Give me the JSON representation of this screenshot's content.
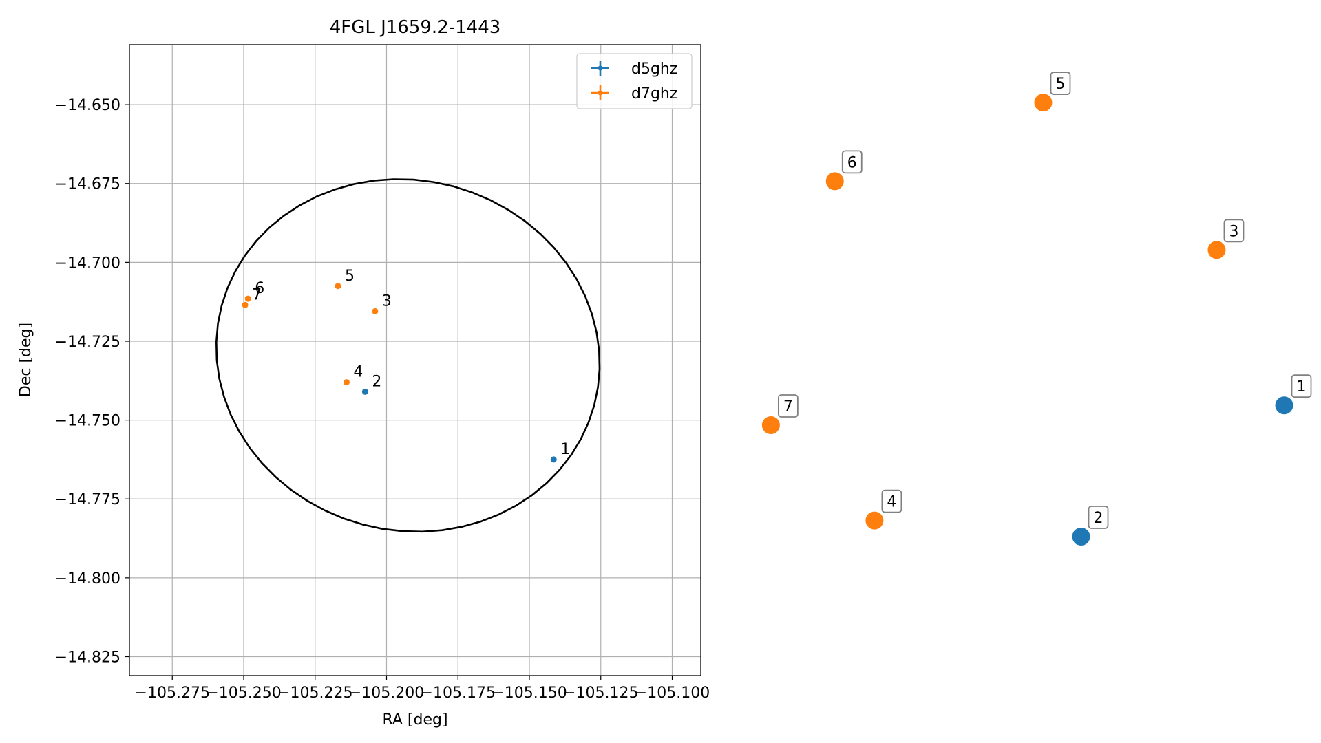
{
  "chart_data": [
    {
      "type": "scatter",
      "title": "4FGL J1659.2-1443",
      "xlabel": "RA [deg]",
      "ylabel": "Dec [deg]",
      "xlim": [
        -105.29,
        -105.09
      ],
      "ylim": [
        -14.831,
        -14.631
      ],
      "xticks": [
        -105.275,
        -105.25,
        -105.225,
        -105.2,
        -105.175,
        -105.15,
        -105.125,
        -105.1
      ],
      "xtick_labels": [
        "−105.275",
        "−105.250",
        "−105.225",
        "−105.200",
        "−105.175",
        "−105.150",
        "−105.125",
        "−105.100"
      ],
      "yticks": [
        -14.65,
        -14.675,
        -14.7,
        -14.725,
        -14.75,
        -14.775,
        -14.8,
        -14.825
      ],
      "ytick_labels": [
        "−14.650",
        "−14.675",
        "−14.700",
        "−14.725",
        "−14.750",
        "−14.775",
        "−14.800",
        "−14.825"
      ],
      "grid": true,
      "legend": {
        "position": "upper-right",
        "entries": [
          {
            "label": "d5ghz",
            "color": "#1f77b4"
          },
          {
            "label": "d7ghz",
            "color": "#ff7f0e"
          }
        ]
      },
      "series": [
        {
          "name": "d5ghz",
          "color": "#1f77b4",
          "points": [
            {
              "label": "1",
              "x": -105.1415,
              "y": -14.7625
            },
            {
              "label": "2",
              "x": -105.2075,
              "y": -14.741
            }
          ]
        },
        {
          "name": "d7ghz",
          "color": "#ff7f0e",
          "points": [
            {
              "label": "3",
              "x": -105.204,
              "y": -14.7155
            },
            {
              "label": "4",
              "x": -105.214,
              "y": -14.738
            },
            {
              "label": "5",
              "x": -105.217,
              "y": -14.7075
            },
            {
              "label": "6",
              "x": -105.2485,
              "y": -14.7115
            },
            {
              "label": "7",
              "x": -105.2495,
              "y": -14.7135
            }
          ]
        }
      ],
      "ellipse": {
        "color": "#000000",
        "center": [
          -105.1925,
          -14.7295
        ],
        "semi_axes_deg": [
          0.0675,
          0.0555
        ],
        "angle_deg": 15
      }
    },
    {
      "type": "scatter",
      "axes_visible": false,
      "point_labels_boxed": true,
      "xlim": [
        0,
        100
      ],
      "ylim": [
        0,
        100
      ],
      "points": [
        {
          "label": "1",
          "series": "d5ghz",
          "color": "#1f77b4",
          "x": 92.5,
          "y": 41.2
        },
        {
          "label": "2",
          "series": "d5ghz",
          "color": "#1f77b4",
          "x": 58.2,
          "y": 20.0
        },
        {
          "label": "3",
          "series": "d7ghz",
          "color": "#ff7f0e",
          "x": 81.1,
          "y": 66.3
        },
        {
          "label": "4",
          "series": "d7ghz",
          "color": "#ff7f0e",
          "x": 23.3,
          "y": 22.6
        },
        {
          "label": "5",
          "series": "d7ghz",
          "color": "#ff7f0e",
          "x": 51.8,
          "y": 90.1
        },
        {
          "label": "6",
          "series": "d7ghz",
          "color": "#ff7f0e",
          "x": 16.6,
          "y": 77.4
        },
        {
          "label": "7",
          "series": "d7ghz",
          "color": "#ff7f0e",
          "x": 5.8,
          "y": 38.0
        }
      ]
    }
  ]
}
